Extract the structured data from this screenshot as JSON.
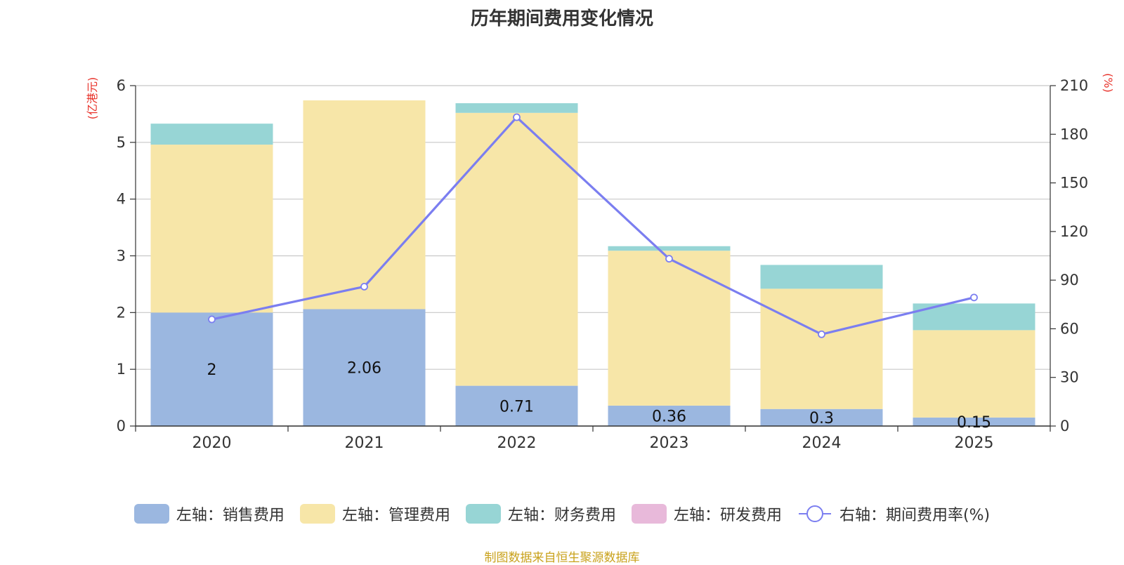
{
  "chart_data": {
    "type": "bar",
    "stacked": true,
    "title": "历年期间费用变化情况",
    "categories": [
      "2020",
      "2021",
      "2022",
      "2023",
      "2024",
      "2025"
    ],
    "left_axis": {
      "label": "(亿港元)",
      "ylim": [
        0,
        6
      ],
      "ticks": [
        0,
        1,
        2,
        3,
        4,
        5,
        6
      ]
    },
    "right_axis": {
      "label": "(%)",
      "ylim": [
        0,
        210
      ],
      "ticks": [
        0,
        30,
        60,
        90,
        120,
        150,
        180,
        210
      ]
    },
    "series": [
      {
        "name": "左轴：销售费用",
        "axis": "left",
        "color": "#9bb7e0",
        "values": [
          2,
          2.06,
          0.71,
          0.36,
          0.3,
          0.15
        ],
        "labels": [
          "2",
          "2.06",
          "0.71",
          "0.36",
          "0.3",
          "0.15"
        ]
      },
      {
        "name": "左轴：管理费用",
        "axis": "left",
        "color": "#f7e6a8",
        "values": [
          2.96,
          3.68,
          4.81,
          2.73,
          2.12,
          1.54
        ]
      },
      {
        "name": "左轴：财务费用",
        "axis": "left",
        "color": "#97d5d5",
        "values": [
          0.37,
          0,
          0.17,
          0.08,
          0.42,
          0.47
        ]
      },
      {
        "name": "左轴：研发费用",
        "axis": "left",
        "color": "#e8b9da",
        "values": [
          0,
          0,
          0,
          0,
          0,
          0
        ]
      },
      {
        "name": "右轴：期间费用率(%)",
        "axis": "right",
        "type": "line",
        "color": "#7b7ef0",
        "values": [
          65.8,
          86.0,
          190.5,
          103.2,
          56.6,
          79.3
        ]
      }
    ],
    "source": "制图数据来自恒生聚源数据库"
  }
}
